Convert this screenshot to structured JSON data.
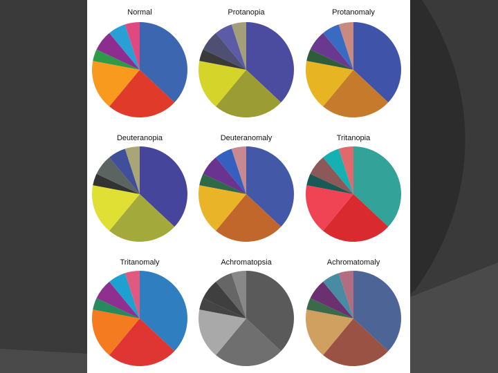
{
  "chart_data": {
    "type": "pie",
    "slice_values": [
      37,
      24,
      17,
      4,
      7,
      6,
      5
    ],
    "charts": [
      {
        "title": "Normal",
        "colors": [
          "#3d66b0",
          "#df3a2a",
          "#f79a1d",
          "#2f9a48",
          "#8d2d8f",
          "#2a9fd6",
          "#e04880"
        ]
      },
      {
        "title": "Protanopia",
        "colors": [
          "#4b4ba0",
          "#9c9c34",
          "#d4d42a",
          "#3a3a3a",
          "#4e4f72",
          "#5b5ba8",
          "#a29f7a"
        ]
      },
      {
        "title": "Protanomaly",
        "colors": [
          "#3f54a8",
          "#c67a2b",
          "#e7b523",
          "#2f5c3a",
          "#6b3890",
          "#3a6bc2",
          "#c98a80"
        ]
      },
      {
        "title": "Deuteranopia",
        "colors": [
          "#45459c",
          "#a3aa3b",
          "#dfe033",
          "#333333",
          "#5c6462",
          "#3f4f9a",
          "#a8a676"
        ]
      },
      {
        "title": "Deuteranomaly",
        "colors": [
          "#4359a8",
          "#c2672b",
          "#e9b428",
          "#2f6a48",
          "#6b3390",
          "#3560c0",
          "#c78a90"
        ]
      },
      {
        "title": "Tritanopia",
        "colors": [
          "#33a39a",
          "#d82a2f",
          "#f04455",
          "#1a5a56",
          "#8c5858",
          "#14b0b2",
          "#e0696c"
        ]
      },
      {
        "title": "Tritanomaly",
        "colors": [
          "#2f7ec0",
          "#df3533",
          "#f57b20",
          "#268a5d",
          "#8f2f8f",
          "#1ea0d0",
          "#df5a7e"
        ]
      },
      {
        "title": "Achromatopsia",
        "colors": [
          "#5a5a5a",
          "#6f6f6f",
          "#a9a9a9",
          "#444444",
          "#3f3f3f",
          "#666666",
          "#888888"
        ]
      },
      {
        "title": "Achromatomaly",
        "colors": [
          "#4d6496",
          "#9a5244",
          "#d0a060",
          "#3a6a4a",
          "#6a3070",
          "#478ca2",
          "#b06e80"
        ]
      }
    ]
  }
}
